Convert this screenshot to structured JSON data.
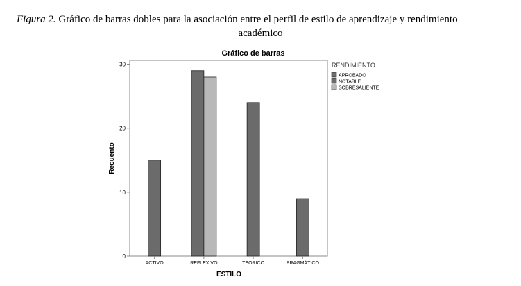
{
  "caption": {
    "figure_label": "Figura 2.",
    "text_line1": "Gráfico de barras dobles para la asociación entre el perfil de estilo de aprendizaje y rendimiento",
    "text_line2": "académico"
  },
  "chart_data": {
    "type": "bar",
    "title": "Gráfico de barras",
    "xlabel": "ESTILO",
    "ylabel": "Recuento",
    "categories": [
      "ACTIVO",
      "REFLEXIVO",
      "TEÓRICO",
      "PRAGMÁTICO"
    ],
    "yticks": [
      0,
      10,
      20,
      30
    ],
    "ylim": [
      0,
      30.6
    ],
    "legend_title": "RENDIMIENTO",
    "legend_placement": "right",
    "grid": false,
    "series": [
      {
        "name": "APROBADO",
        "color": "#6b6b6b",
        "values": [
          15,
          29,
          24,
          9
        ]
      },
      {
        "name": "NOTABLE",
        "color": "#6b6b6b",
        "values": [
          0,
          0,
          0,
          0
        ]
      },
      {
        "name": "SOBRESALIENTE",
        "color": "#b8b8b8",
        "values": [
          0,
          28,
          0,
          0
        ]
      }
    ],
    "plotted_bars": [
      {
        "category": "ACTIVO",
        "series": "APROBADO",
        "value": 15
      },
      {
        "category": "REFLEXIVO",
        "series": "APROBADO",
        "value": 29
      },
      {
        "category": "REFLEXIVO",
        "series": "SOBRESALIENTE",
        "value": 28
      },
      {
        "category": "TEÓRICO",
        "series": "APROBADO",
        "value": 24
      },
      {
        "category": "PRAGMÁTICO",
        "series": "APROBADO",
        "value": 9
      }
    ]
  }
}
